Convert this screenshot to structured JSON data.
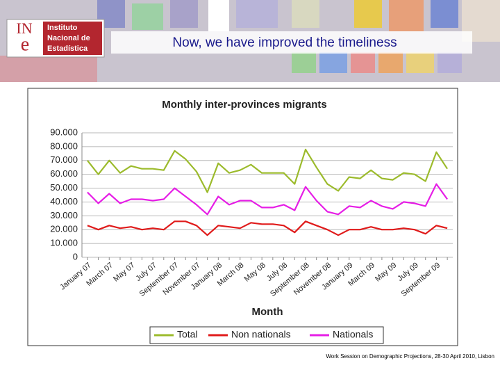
{
  "header": {
    "logo": {
      "letters_top": "IN",
      "letters_bottom": "e",
      "lines": [
        "Instituto",
        "Nacional de",
        "Estadística"
      ]
    },
    "title": "Now, we have improved the timeliness"
  },
  "chart_data": {
    "type": "line",
    "title": "Monthly inter-provinces migrants",
    "x_label": "Month",
    "categories": [
      "January 07",
      null,
      "March 07",
      null,
      "May 07",
      null,
      "July 07",
      null,
      "September 07",
      null,
      "November 07",
      null,
      "January 08",
      null,
      "March 08",
      null,
      "May 08",
      null,
      "July 08",
      null,
      "September 08",
      null,
      "November 08",
      null,
      "January 09",
      null,
      "March 09",
      null,
      "May 09",
      null,
      "July 09",
      null,
      "September 09",
      null
    ],
    "series": [
      {
        "name": "Total",
        "color": "#9cbb2c",
        "values": [
          70000,
          60000,
          70000,
          61000,
          66000,
          64000,
          64000,
          63000,
          77000,
          71000,
          62000,
          47000,
          68000,
          61000,
          63000,
          67000,
          61000,
          61000,
          61000,
          53000,
          78000,
          65000,
          53000,
          48000,
          58000,
          57000,
          63000,
          57000,
          56000,
          61000,
          60000,
          55000,
          76000,
          64000
        ]
      },
      {
        "name": "Non nationals",
        "color": "#e01b1b",
        "values": [
          23000,
          20000,
          23000,
          21000,
          22000,
          20000,
          21000,
          20000,
          26000,
          26000,
          23000,
          16000,
          23000,
          22000,
          21000,
          25000,
          24000,
          24000,
          23000,
          18000,
          26000,
          23000,
          20000,
          16000,
          20000,
          20000,
          22000,
          20000,
          20000,
          21000,
          20000,
          17000,
          23000,
          21000
        ]
      },
      {
        "name": "Nationals",
        "color": "#e61ee6",
        "values": [
          47000,
          39000,
          46000,
          39000,
          42000,
          42000,
          41000,
          42000,
          50000,
          44000,
          38000,
          31000,
          44000,
          38000,
          41000,
          41000,
          36000,
          36000,
          38000,
          34000,
          51000,
          41000,
          33000,
          31000,
          37000,
          36000,
          41000,
          37000,
          35000,
          40000,
          39000,
          37000,
          53000,
          42000
        ]
      }
    ],
    "ylim": [
      0,
      90000
    ],
    "yticks": [
      0,
      {
        "value": 10000,
        "label": "10.000"
      },
      {
        "value": 20000,
        "label": "20.000"
      },
      {
        "value": 30000,
        "label": "30.000"
      },
      {
        "value": 40000,
        "label": "40.000"
      },
      {
        "value": 50000,
        "label": "50.000"
      },
      {
        "value": 60000,
        "label": "60.000"
      },
      {
        "value": 70000,
        "label": "70.000"
      },
      {
        "value": 80000,
        "label": "80.000"
      },
      {
        "value": 90000,
        "label": "90.000"
      }
    ],
    "grid": true,
    "legend": "bottom"
  },
  "footer": "Work Session on Demographic Projections, 28-30 April 2010, Lisbon"
}
